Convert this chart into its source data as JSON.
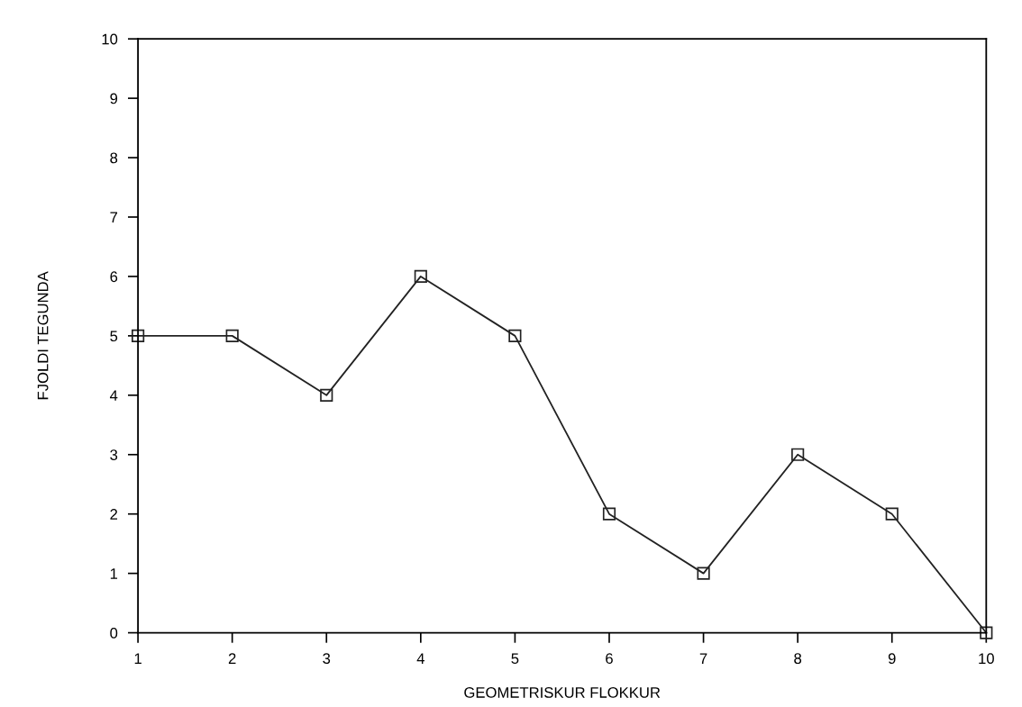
{
  "chart_data": {
    "type": "line",
    "xlabel": "GEOMETRISKUR FLOKKUR",
    "ylabel": "FJOLDI TEGUNDA",
    "x": [
      1,
      2,
      3,
      4,
      5,
      6,
      7,
      8,
      9,
      10
    ],
    "series": [
      {
        "color": "#222222",
        "values": [
          5,
          5,
          4,
          6,
          5,
          2,
          1,
          3,
          2,
          0
        ]
      }
    ],
    "xlim": [
      1,
      10
    ],
    "xticks": [
      1,
      2,
      3,
      4,
      5,
      6,
      7,
      8,
      9,
      10
    ],
    "ylim": [
      0,
      10
    ],
    "yticks": [
      0,
      1,
      2,
      3,
      4,
      5,
      6,
      7,
      8,
      9,
      10
    ],
    "marker": "square",
    "line_style": "solid",
    "grid": false
  }
}
